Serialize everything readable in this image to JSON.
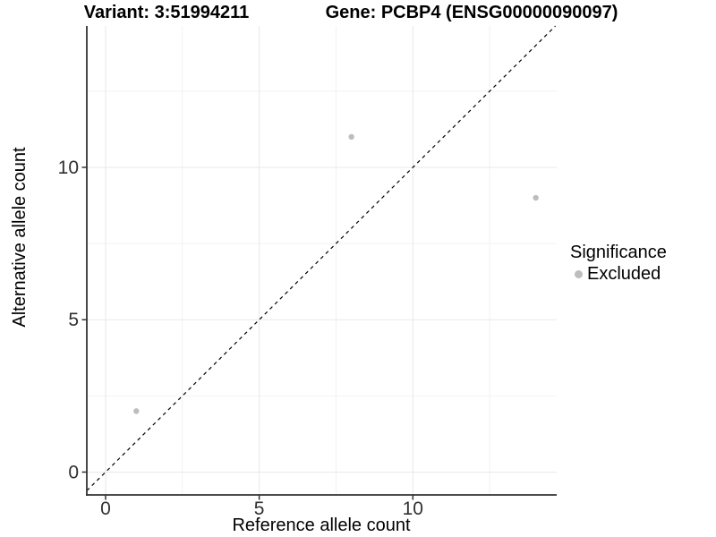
{
  "titles": {
    "variant": "Variant: 3:51994211",
    "gene": "Gene: PCBP4 (ENSG00000090097)"
  },
  "legend": {
    "title": "Significance",
    "items": [
      {
        "label": "Excluded",
        "color": "#bdbdbd"
      }
    ]
  },
  "colors": {
    "background": "#ffffff",
    "grid_major": "#e8e8e8",
    "grid_minor": "#f2f2f2",
    "axis_line": "#333333",
    "tick_mark": "#333333",
    "tick_text": "#303030",
    "point": "#bdbdbd",
    "reference_line": "#000000"
  },
  "chart_data": {
    "type": "scatter",
    "title": "Variant: 3:51994211  |  Gene: PCBP4 (ENSG00000090097)",
    "xlabel": "Reference allele count",
    "ylabel": "Alternative allele count",
    "series": [
      {
        "name": "Excluded",
        "color": "#bdbdbd",
        "points": [
          [
            1,
            2
          ],
          [
            8,
            11
          ],
          [
            14,
            9
          ]
        ]
      }
    ],
    "reference_line": {
      "kind": "identity",
      "style": "dashed",
      "color": "#000000"
    },
    "xlim": [
      -0.61,
      14.68
    ],
    "ylim": [
      -0.75,
      14.64
    ],
    "x_ticks": [
      0,
      5,
      10
    ],
    "y_ticks": [
      0,
      5,
      10
    ],
    "x_minor_ticks": [
      2.5,
      7.5,
      12.5
    ],
    "y_minor_ticks": [
      2.5,
      7.5,
      12.5
    ],
    "grid": true,
    "legend_position": "right",
    "legend_title": "Significance"
  }
}
